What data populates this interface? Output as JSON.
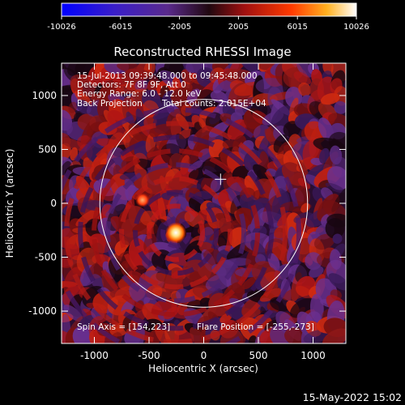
{
  "colorbar": {
    "ticks": [
      "-10026",
      "-6015",
      "-2005",
      "2005",
      "6015",
      "10026"
    ],
    "min": -10026,
    "max": 10026
  },
  "chart_data": {
    "type": "heatmap",
    "title": "Reconstructed RHESSI Image",
    "xlabel": "Heliocentric X (arcsec)",
    "ylabel": "Heliocentric Y (arcsec)",
    "xlim": [
      -1300,
      1300
    ],
    "ylim": [
      -1300,
      1300
    ],
    "x_ticks": [
      "-1000",
      "-500",
      "0",
      "500",
      "1000"
    ],
    "y_ticks": [
      "1000",
      "500",
      "0",
      "-500",
      "-1000"
    ],
    "x_tick_values": [
      -1000,
      -500,
      0,
      500,
      1000
    ],
    "y_tick_values": [
      1000,
      500,
      0,
      -500,
      -1000
    ],
    "solar_disk_radius": 950,
    "spin_axis_marker": [
      154,
      223
    ],
    "flare_position": [
      -255,
      -273
    ],
    "secondary_source": [
      -560,
      30
    ],
    "annotations": {
      "time_range": "15-Jul-2013 09:39:48.000 to 09:45:48.000",
      "detectors": "Detectors: 7F 8F 9F, Att 0",
      "energy_range": "Energy Range: 6.0 - 12.0 keV",
      "method": "Back Projection",
      "total_counts": "Total counts: 2.015E+04",
      "spin_axis": "Spin Axis = [154,223]",
      "flare_position": "Flare Position = [-255,-273]"
    }
  },
  "footer": {
    "timestamp": "15-May-2022 15:02"
  },
  "colors": {
    "background": "#000000",
    "foreground": "#ffffff",
    "circle": "#ffffff"
  }
}
